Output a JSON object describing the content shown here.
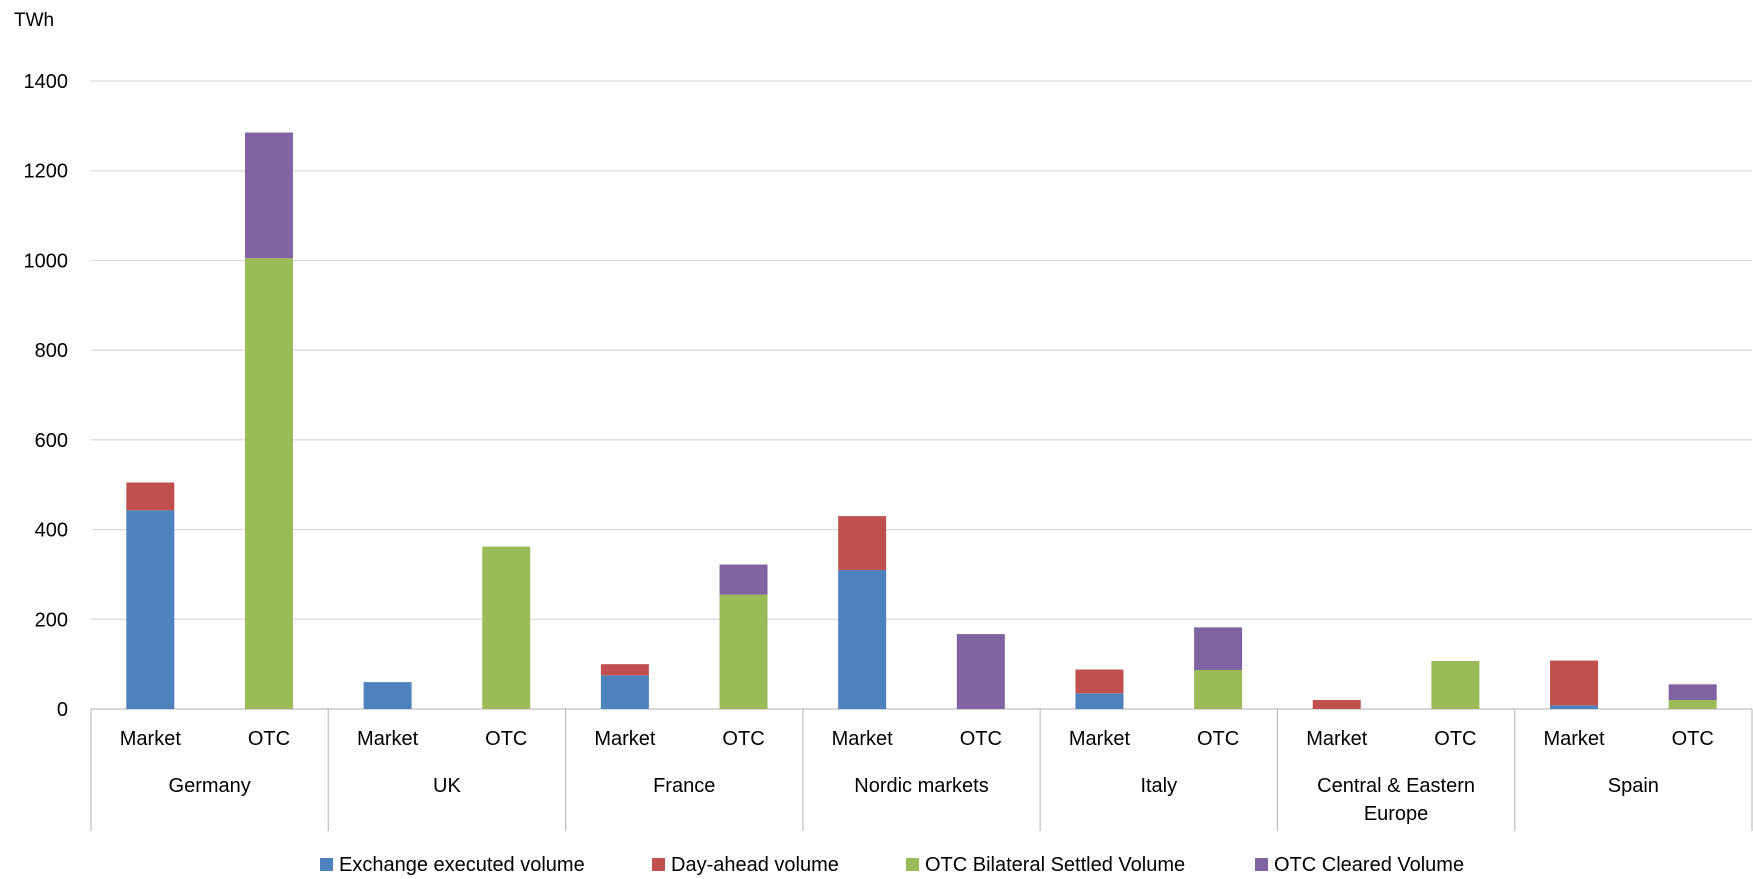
{
  "chart_data": {
    "type": "bar",
    "stacked": true,
    "ylabel": "TWh",
    "ylim": [
      0,
      1400
    ],
    "yticks": [
      0,
      200,
      400,
      600,
      800,
      1000,
      1200,
      1400
    ],
    "grid": true,
    "legend_position": "bottom",
    "groups": [
      {
        "name": "Germany",
        "name_lines": [
          "Germany"
        ],
        "categories": [
          "Market",
          "OTC"
        ]
      },
      {
        "name": "UK",
        "name_lines": [
          "UK"
        ],
        "categories": [
          "Market",
          "OTC"
        ]
      },
      {
        "name": "France",
        "name_lines": [
          "France"
        ],
        "categories": [
          "Market",
          "OTC"
        ]
      },
      {
        "name": "Nordic markets",
        "name_lines": [
          "Nordic markets"
        ],
        "categories": [
          "Market",
          "OTC"
        ]
      },
      {
        "name": "Italy",
        "name_lines": [
          "Italy"
        ],
        "categories": [
          "Market",
          "OTC"
        ]
      },
      {
        "name": "Central & Eastern Europe",
        "name_lines": [
          "Central & Eastern",
          "Europe"
        ],
        "categories": [
          "Market",
          "OTC"
        ]
      },
      {
        "name": "Spain",
        "name_lines": [
          "Spain"
        ],
        "categories": [
          "Market",
          "OTC"
        ]
      }
    ],
    "series": [
      {
        "name": "Exchange executed volume",
        "color": "#4F81BD",
        "values": [
          443,
          0,
          60,
          0,
          75,
          0,
          310,
          0,
          35,
          0,
          0,
          0,
          8,
          0
        ]
      },
      {
        "name": "Day-ahead volume",
        "color": "#C0504D",
        "values": [
          62,
          0,
          0,
          0,
          25,
          0,
          120,
          0,
          53,
          0,
          20,
          0,
          100,
          0
        ]
      },
      {
        "name": "OTC Bilateral Settled Volume",
        "color": "#9BBB59",
        "values": [
          0,
          1005,
          0,
          362,
          0,
          255,
          0,
          0,
          0,
          87,
          0,
          107,
          0,
          20
        ]
      },
      {
        "name": "OTC Cleared Volume",
        "color": "#8064A2",
        "values": [
          0,
          280,
          0,
          0,
          0,
          67,
          0,
          167,
          0,
          95,
          0,
          0,
          0,
          35
        ]
      }
    ]
  }
}
